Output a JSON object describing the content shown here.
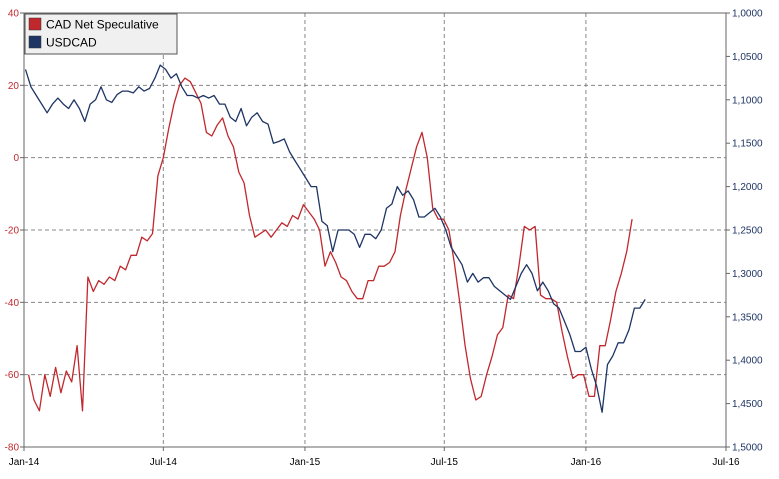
{
  "chart_data": {
    "type": "line",
    "title": "",
    "xlabel": "",
    "ylabel": "",
    "x_ticks": [
      "Jan-14",
      "Jul-14",
      "Jan-15",
      "Jul-15",
      "Jan-16",
      "Jul-16"
    ],
    "y_left": {
      "range": [
        -80,
        40
      ],
      "ticks": [
        "-80",
        "-60",
        "-40",
        "-20",
        "0",
        "20",
        "40"
      ],
      "color": "#c0282d"
    },
    "y_right": {
      "range": [
        1.0,
        1.5
      ],
      "inverted": true,
      "ticks": [
        "1,0000",
        "1,0500",
        "1,1000",
        "1,1500",
        "1,2000",
        "1,2500",
        "1,3000",
        "1,3500",
        "1,4000",
        "1,4500",
        "1,5000"
      ],
      "color": "#1f3564"
    },
    "grid": true,
    "legend": {
      "position": "top-left"
    },
    "series": [
      {
        "name": "CAD Net Speculative",
        "axis": "left",
        "color": "#c0282d",
        "points": [
          [
            "2014-01-07",
            -60
          ],
          [
            "2014-01-14",
            -67
          ],
          [
            "2014-01-21",
            -70
          ],
          [
            "2014-01-28",
            -60
          ],
          [
            "2014-02-04",
            -66
          ],
          [
            "2014-02-11",
            -58
          ],
          [
            "2014-02-18",
            -65
          ],
          [
            "2014-02-25",
            -59
          ],
          [
            "2014-03-04",
            -62
          ],
          [
            "2014-03-11",
            -52
          ],
          [
            "2014-03-18",
            -70
          ],
          [
            "2014-03-25",
            -33
          ],
          [
            "2014-04-01",
            -37
          ],
          [
            "2014-04-08",
            -34
          ],
          [
            "2014-04-15",
            -35
          ],
          [
            "2014-04-22",
            -33
          ],
          [
            "2014-04-29",
            -34
          ],
          [
            "2014-05-06",
            -30
          ],
          [
            "2014-05-13",
            -31
          ],
          [
            "2014-05-20",
            -27
          ],
          [
            "2014-05-27",
            -27
          ],
          [
            "2014-06-03",
            -22
          ],
          [
            "2014-06-10",
            -23
          ],
          [
            "2014-06-17",
            -21
          ],
          [
            "2014-06-24",
            -5
          ],
          [
            "2014-07-01",
            0
          ],
          [
            "2014-07-08",
            8
          ],
          [
            "2014-07-15",
            15
          ],
          [
            "2014-07-22",
            20
          ],
          [
            "2014-07-29",
            22
          ],
          [
            "2014-08-05",
            21
          ],
          [
            "2014-08-12",
            18
          ],
          [
            "2014-08-19",
            15
          ],
          [
            "2014-08-26",
            7
          ],
          [
            "2014-09-02",
            6
          ],
          [
            "2014-09-09",
            9
          ],
          [
            "2014-09-16",
            11
          ],
          [
            "2014-09-23",
            6
          ],
          [
            "2014-09-30",
            3
          ],
          [
            "2014-10-07",
            -4
          ],
          [
            "2014-10-14",
            -7
          ],
          [
            "2014-10-21",
            -16
          ],
          [
            "2014-10-28",
            -22
          ],
          [
            "2014-11-04",
            -21
          ],
          [
            "2014-11-11",
            -20
          ],
          [
            "2014-11-18",
            -22
          ],
          [
            "2014-11-25",
            -20
          ],
          [
            "2014-12-02",
            -18
          ],
          [
            "2014-12-09",
            -19
          ],
          [
            "2014-12-16",
            -16
          ],
          [
            "2014-12-23",
            -17
          ],
          [
            "2014-12-30",
            -13
          ],
          [
            "2015-01-06",
            -15
          ],
          [
            "2015-01-13",
            -17
          ],
          [
            "2015-01-20",
            -20
          ],
          [
            "2015-01-27",
            -30
          ],
          [
            "2015-02-03",
            -26
          ],
          [
            "2015-02-10",
            -29
          ],
          [
            "2015-02-17",
            -33
          ],
          [
            "2015-02-24",
            -34
          ],
          [
            "2015-03-03",
            -37
          ],
          [
            "2015-03-10",
            -39
          ],
          [
            "2015-03-17",
            -39
          ],
          [
            "2015-03-24",
            -34
          ],
          [
            "2015-03-31",
            -34
          ],
          [
            "2015-04-07",
            -30
          ],
          [
            "2015-04-14",
            -30
          ],
          [
            "2015-04-21",
            -29
          ],
          [
            "2015-04-28",
            -26
          ],
          [
            "2015-05-05",
            -16
          ],
          [
            "2015-05-12",
            -9
          ],
          [
            "2015-05-19",
            -3
          ],
          [
            "2015-05-26",
            3
          ],
          [
            "2015-06-02",
            7
          ],
          [
            "2015-06-09",
            0
          ],
          [
            "2015-06-16",
            -14
          ],
          [
            "2015-06-23",
            -17
          ],
          [
            "2015-06-30",
            -17
          ],
          [
            "2015-07-07",
            -20
          ],
          [
            "2015-07-14",
            -29
          ],
          [
            "2015-07-21",
            -40
          ],
          [
            "2015-07-28",
            -52
          ],
          [
            "2015-08-04",
            -61
          ],
          [
            "2015-08-11",
            -67
          ],
          [
            "2015-08-18",
            -66
          ],
          [
            "2015-08-25",
            -60
          ],
          [
            "2015-09-01",
            -55
          ],
          [
            "2015-09-08",
            -49
          ],
          [
            "2015-09-15",
            -47
          ],
          [
            "2015-09-22",
            -38
          ],
          [
            "2015-09-29",
            -39
          ],
          [
            "2015-10-06",
            -30
          ],
          [
            "2015-10-13",
            -19
          ],
          [
            "2015-10-20",
            -20
          ],
          [
            "2015-10-27",
            -19
          ],
          [
            "2015-11-03",
            -38
          ],
          [
            "2015-11-10",
            -39
          ],
          [
            "2015-11-17",
            -39
          ],
          [
            "2015-11-24",
            -40
          ],
          [
            "2015-12-01",
            -48
          ],
          [
            "2015-12-08",
            -55
          ],
          [
            "2015-12-15",
            -61
          ],
          [
            "2015-12-22",
            -60
          ],
          [
            "2015-12-29",
            -60
          ],
          [
            "2016-01-05",
            -66
          ],
          [
            "2016-01-12",
            -66
          ],
          [
            "2016-01-19",
            -52
          ],
          [
            "2016-01-26",
            -52
          ],
          [
            "2016-02-02",
            -45
          ],
          [
            "2016-02-09",
            -37
          ],
          [
            "2016-02-16",
            -32
          ],
          [
            "2016-02-23",
            -26
          ],
          [
            "2016-03-01",
            -17
          ]
        ]
      },
      {
        "name": "USDCAD",
        "axis": "right",
        "color": "#1f3564",
        "points": [
          [
            "2014-01-03",
            1.065
          ],
          [
            "2014-01-10",
            1.085
          ],
          [
            "2014-01-17",
            1.095
          ],
          [
            "2014-01-24",
            1.105
          ],
          [
            "2014-01-31",
            1.115
          ],
          [
            "2014-02-07",
            1.105
          ],
          [
            "2014-02-14",
            1.098
          ],
          [
            "2014-02-21",
            1.105
          ],
          [
            "2014-02-28",
            1.11
          ],
          [
            "2014-03-07",
            1.1
          ],
          [
            "2014-03-14",
            1.11
          ],
          [
            "2014-03-21",
            1.125
          ],
          [
            "2014-03-28",
            1.105
          ],
          [
            "2014-04-04",
            1.1
          ],
          [
            "2014-04-11",
            1.085
          ],
          [
            "2014-04-18",
            1.1
          ],
          [
            "2014-04-25",
            1.103
          ],
          [
            "2014-05-02",
            1.094
          ],
          [
            "2014-05-09",
            1.09
          ],
          [
            "2014-05-16",
            1.09
          ],
          [
            "2014-05-23",
            1.092
          ],
          [
            "2014-05-30",
            1.085
          ],
          [
            "2014-06-06",
            1.09
          ],
          [
            "2014-06-13",
            1.087
          ],
          [
            "2014-06-20",
            1.075
          ],
          [
            "2014-06-27",
            1.06
          ],
          [
            "2014-07-04",
            1.065
          ],
          [
            "2014-07-11",
            1.075
          ],
          [
            "2014-07-18",
            1.07
          ],
          [
            "2014-07-25",
            1.085
          ],
          [
            "2014-08-01",
            1.095
          ],
          [
            "2014-08-08",
            1.095
          ],
          [
            "2014-08-15",
            1.098
          ],
          [
            "2014-08-22",
            1.095
          ],
          [
            "2014-08-29",
            1.098
          ],
          [
            "2014-09-05",
            1.095
          ],
          [
            "2014-09-12",
            1.105
          ],
          [
            "2014-09-19",
            1.105
          ],
          [
            "2014-09-26",
            1.12
          ],
          [
            "2014-10-03",
            1.125
          ],
          [
            "2014-10-10",
            1.11
          ],
          [
            "2014-10-17",
            1.13
          ],
          [
            "2014-10-24",
            1.12
          ],
          [
            "2014-10-31",
            1.115
          ],
          [
            "2014-11-07",
            1.125
          ],
          [
            "2014-11-14",
            1.128
          ],
          [
            "2014-11-21",
            1.15
          ],
          [
            "2014-11-28",
            1.148
          ],
          [
            "2014-12-05",
            1.145
          ],
          [
            "2014-12-12",
            1.16
          ],
          [
            "2014-12-19",
            1.17
          ],
          [
            "2014-12-26",
            1.18
          ],
          [
            "2015-01-02",
            1.19
          ],
          [
            "2015-01-09",
            1.2
          ],
          [
            "2015-01-16",
            1.2
          ],
          [
            "2015-01-23",
            1.24
          ],
          [
            "2015-01-30",
            1.245
          ],
          [
            "2015-02-06",
            1.275
          ],
          [
            "2015-02-13",
            1.25
          ],
          [
            "2015-02-20",
            1.25
          ],
          [
            "2015-02-27",
            1.25
          ],
          [
            "2015-03-06",
            1.255
          ],
          [
            "2015-03-13",
            1.27
          ],
          [
            "2015-03-20",
            1.255
          ],
          [
            "2015-03-27",
            1.255
          ],
          [
            "2015-04-03",
            1.26
          ],
          [
            "2015-04-10",
            1.25
          ],
          [
            "2015-04-17",
            1.225
          ],
          [
            "2015-04-24",
            1.22
          ],
          [
            "2015-05-01",
            1.2
          ],
          [
            "2015-05-08",
            1.21
          ],
          [
            "2015-05-15",
            1.205
          ],
          [
            "2015-05-22",
            1.215
          ],
          [
            "2015-05-29",
            1.235
          ],
          [
            "2015-06-05",
            1.235
          ],
          [
            "2015-06-12",
            1.23
          ],
          [
            "2015-06-19",
            1.225
          ],
          [
            "2015-06-26",
            1.235
          ],
          [
            "2015-07-03",
            1.25
          ],
          [
            "2015-07-10",
            1.27
          ],
          [
            "2015-07-17",
            1.28
          ],
          [
            "2015-07-24",
            1.29
          ],
          [
            "2015-07-31",
            1.31
          ],
          [
            "2015-08-07",
            1.3
          ],
          [
            "2015-08-14",
            1.31
          ],
          [
            "2015-08-21",
            1.305
          ],
          [
            "2015-08-28",
            1.305
          ],
          [
            "2015-09-04",
            1.315
          ],
          [
            "2015-09-11",
            1.32
          ],
          [
            "2015-09-18",
            1.325
          ],
          [
            "2015-09-25",
            1.33
          ],
          [
            "2015-10-02",
            1.315
          ],
          [
            "2015-10-09",
            1.3
          ],
          [
            "2015-10-16",
            1.29
          ],
          [
            "2015-10-23",
            1.3
          ],
          [
            "2015-10-30",
            1.32
          ],
          [
            "2015-11-06",
            1.31
          ],
          [
            "2015-11-13",
            1.32
          ],
          [
            "2015-11-20",
            1.335
          ],
          [
            "2015-11-27",
            1.34
          ],
          [
            "2015-12-04",
            1.355
          ],
          [
            "2015-12-11",
            1.37
          ],
          [
            "2015-12-18",
            1.39
          ],
          [
            "2015-12-25",
            1.39
          ],
          [
            "2016-01-01",
            1.385
          ],
          [
            "2016-01-08",
            1.41
          ],
          [
            "2016-01-15",
            1.43
          ],
          [
            "2016-01-22",
            1.46
          ],
          [
            "2016-01-29",
            1.405
          ],
          [
            "2016-02-05",
            1.395
          ],
          [
            "2016-02-12",
            1.38
          ],
          [
            "2016-02-19",
            1.38
          ],
          [
            "2016-02-26",
            1.365
          ],
          [
            "2016-03-04",
            1.34
          ],
          [
            "2016-03-11",
            1.34
          ],
          [
            "2016-03-18",
            1.33
          ]
        ]
      }
    ]
  }
}
